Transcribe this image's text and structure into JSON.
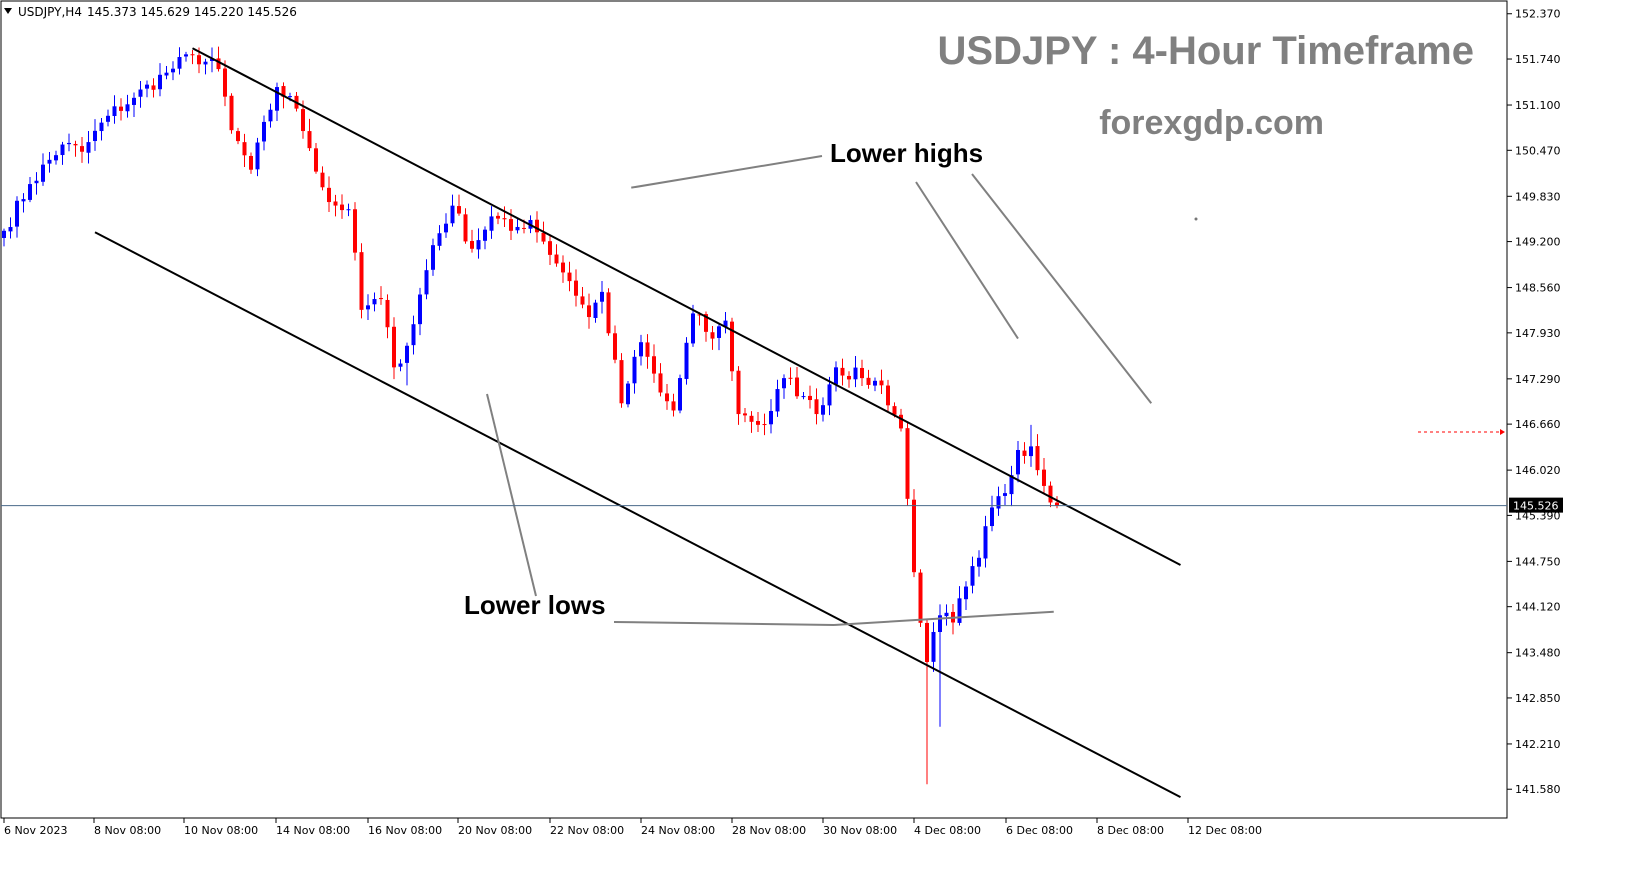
{
  "header": {
    "symbol": "USDJPY,H4",
    "ohlc": "145.373 145.629 145.220 145.526"
  },
  "title": "USDJPY : 4-Hour Timeframe",
  "subtitle": "forexgdp.com",
  "colors": {
    "bull": "#0000ff",
    "bear": "#ff0000",
    "channel": "#000000",
    "annotation_line": "#808080",
    "current_price_line": "#4a6a8a",
    "current_price_tag": "#000000"
  },
  "chart_data": {
    "type": "candlestick",
    "symbol": "USDJPY",
    "timeframe": "H4",
    "y_ticks": [
      "152.370",
      "151.740",
      "151.100",
      "150.470",
      "149.830",
      "149.200",
      "148.560",
      "147.930",
      "147.290",
      "146.660",
      "146.020",
      "145.390",
      "144.750",
      "144.120",
      "143.480",
      "142.850",
      "142.210",
      "141.580"
    ],
    "ylim": [
      141.43,
      152.45
    ],
    "x_ticks": [
      "6 Nov 2023",
      "8 Nov 08:00",
      "10 Nov 08:00",
      "14 Nov 08:00",
      "16 Nov 08:00",
      "20 Nov 08:00",
      "22 Nov 08:00",
      "24 Nov 08:00",
      "28 Nov 08:00",
      "30 Nov 08:00",
      "4 Dec 08:00",
      "6 Dec 08:00",
      "8 Dec 08:00",
      "12 Dec 08:00"
    ],
    "current_price": "145.526",
    "current_price_value": 145.526,
    "marked_level": 146.55,
    "annotations": [
      "Lower highs",
      "Lower lows"
    ],
    "channel_upper": {
      "from": {
        "bar": 29,
        "price": 151.89
      },
      "to": {
        "bar": 181,
        "price": 144.7
      }
    },
    "channel_lower": {
      "from": {
        "bar": 14,
        "price": 149.33
      },
      "to": {
        "bar": 181,
        "price": 141.47
      }
    },
    "anchor_points": [
      {
        "bar": 0,
        "price": 149.35
      },
      {
        "bar": 4,
        "price": 150.0
      },
      {
        "bar": 9,
        "price": 150.55
      },
      {
        "bar": 12,
        "price": 150.45
      },
      {
        "bar": 16,
        "price": 150.95
      },
      {
        "bar": 20,
        "price": 151.2
      },
      {
        "bar": 25,
        "price": 151.55
      },
      {
        "bar": 29,
        "price": 151.8
      },
      {
        "bar": 33,
        "price": 151.6
      },
      {
        "bar": 35,
        "price": 150.75
      },
      {
        "bar": 38,
        "price": 150.2
      },
      {
        "bar": 42,
        "price": 151.35
      },
      {
        "bar": 45,
        "price": 151.05
      },
      {
        "bar": 47,
        "price": 150.5
      },
      {
        "bar": 50,
        "price": 149.75
      },
      {
        "bar": 53,
        "price": 149.65
      },
      {
        "bar": 55,
        "price": 148.25
      },
      {
        "bar": 58,
        "price": 148.4
      },
      {
        "bar": 60,
        "price": 147.45
      },
      {
        "bar": 62,
        "price": 147.75
      },
      {
        "bar": 66,
        "price": 149.15
      },
      {
        "bar": 69,
        "price": 149.7
      },
      {
        "bar": 72,
        "price": 149.1
      },
      {
        "bar": 75,
        "price": 149.55
      },
      {
        "bar": 78,
        "price": 149.35
      },
      {
        "bar": 81,
        "price": 149.5
      },
      {
        "bar": 83,
        "price": 149.2
      },
      {
        "bar": 87,
        "price": 148.65
      },
      {
        "bar": 90,
        "price": 148.15
      },
      {
        "bar": 92,
        "price": 148.5
      },
      {
        "bar": 95,
        "price": 146.95
      },
      {
        "bar": 98,
        "price": 147.8
      },
      {
        "bar": 101,
        "price": 147.1
      },
      {
        "bar": 103,
        "price": 146.85
      },
      {
        "bar": 106,
        "price": 148.2
      },
      {
        "bar": 109,
        "price": 147.85
      },
      {
        "bar": 111,
        "price": 148.1
      },
      {
        "bar": 113,
        "price": 146.8
      },
      {
        "bar": 117,
        "price": 146.65
      },
      {
        "bar": 120,
        "price": 147.3
      },
      {
        "bar": 123,
        "price": 147.05
      },
      {
        "bar": 125,
        "price": 146.8
      },
      {
        "bar": 128,
        "price": 147.45
      },
      {
        "bar": 132,
        "price": 147.3
      },
      {
        "bar": 135,
        "price": 147.2
      },
      {
        "bar": 138,
        "price": 146.6
      },
      {
        "bar": 140,
        "price": 144.6
      },
      {
        "bar": 142,
        "price": 143.35
      },
      {
        "bar": 144,
        "price": 144.0
      },
      {
        "bar": 146,
        "price": 143.9
      },
      {
        "bar": 148,
        "price": 144.4
      },
      {
        "bar": 150,
        "price": 144.8
      },
      {
        "bar": 152,
        "price": 145.5
      },
      {
        "bar": 154,
        "price": 145.7
      },
      {
        "bar": 156,
        "price": 146.3
      },
      {
        "bar": 158,
        "price": 146.35
      },
      {
        "bar": 160,
        "price": 145.8
      },
      {
        "bar": 162,
        "price": 145.526
      }
    ],
    "extremes": [
      {
        "bar": 30,
        "price": 151.9
      },
      {
        "bar": 62,
        "price": 147.2
      },
      {
        "bar": 142,
        "price": 141.65
      },
      {
        "bar": 144,
        "price": 142.45
      },
      {
        "bar": 158,
        "price": 146.65
      }
    ]
  }
}
